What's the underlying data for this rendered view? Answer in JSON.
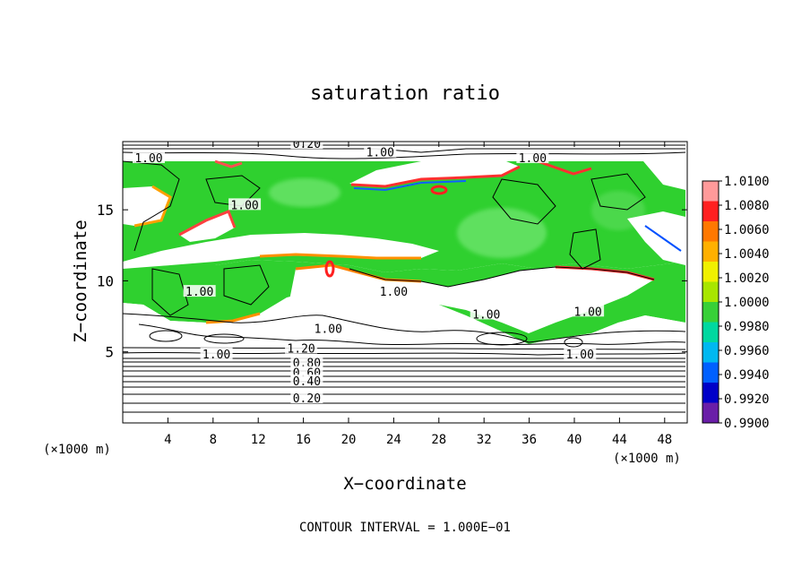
{
  "chart_data": {
    "type": "heatmap",
    "title": "saturation ratio",
    "xlabel": "X−coordinate",
    "ylabel": "Z−coordinate",
    "x_unit_left": "(×1000 m)",
    "x_unit_right": "(×1000 m)",
    "footer": "CONTOUR INTERVAL = 1.000E−01",
    "xlim": [
      0,
      50
    ],
    "ylim": [
      0,
      19.8
    ],
    "x_ticks": [
      4,
      8,
      12,
      16,
      20,
      24,
      28,
      32,
      36,
      40,
      44,
      48
    ],
    "y_ticks": [
      5,
      10,
      15
    ],
    "colorbar": {
      "range": [
        0.99,
        1.01
      ],
      "ticks": [
        "1.0100",
        "1.0080",
        "1.0060",
        "1.0040",
        "1.0020",
        "1.0000",
        "0.9980",
        "0.9960",
        "0.9940",
        "0.9920",
        "0.9900"
      ],
      "colors": [
        "#ff9a9a",
        "#ff2020",
        "#ff7800",
        "#ffb000",
        "#f0f000",
        "#a8e600",
        "#38d038",
        "#00d8a0",
        "#00b8f0",
        "#0060ff",
        "#0000c8",
        "#6a1ea8"
      ]
    },
    "contour_labels": [
      {
        "text": "0.20",
        "x": 16.3,
        "y": 19.6
      },
      {
        "text": "1.00",
        "x": 2.3,
        "y": 18.6
      },
      {
        "text": "1.00",
        "x": 22.8,
        "y": 19.0
      },
      {
        "text": "1.00",
        "x": 36.3,
        "y": 18.6
      },
      {
        "text": "1.00",
        "x": 10.8,
        "y": 15.3
      },
      {
        "text": "1.00",
        "x": 24.0,
        "y": 9.2
      },
      {
        "text": "1.00",
        "x": 6.8,
        "y": 9.2
      },
      {
        "text": "1.00",
        "x": 32.2,
        "y": 7.6
      },
      {
        "text": "1.00",
        "x": 41.2,
        "y": 7.8
      },
      {
        "text": "1.00",
        "x": 18.2,
        "y": 6.6
      },
      {
        "text": "1.00",
        "x": 8.3,
        "y": 4.8
      },
      {
        "text": "1.00",
        "x": 40.5,
        "y": 4.8
      },
      {
        "text": "1.20",
        "x": 15.8,
        "y": 5.2
      },
      {
        "text": "0.80",
        "x": 16.3,
        "y": 4.2
      },
      {
        "text": "0.60",
        "x": 16.3,
        "y": 3.5
      },
      {
        "text": "0.40",
        "x": 16.3,
        "y": 2.9
      },
      {
        "text": "0.20",
        "x": 16.3,
        "y": 1.7
      }
    ]
  }
}
